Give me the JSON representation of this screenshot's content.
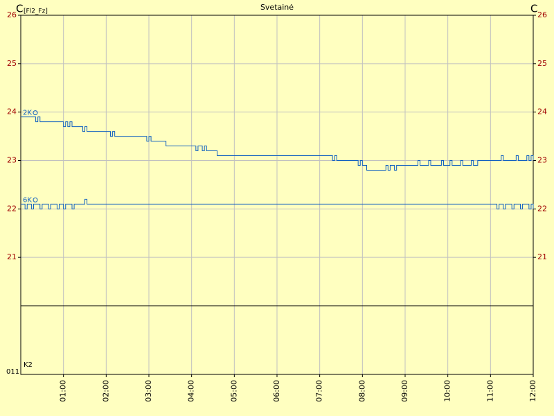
{
  "chart_data": {
    "type": "line",
    "title": "Svetainė",
    "y_axis_label": "C",
    "y_axis_sublabel": "[Fl2_Fz]",
    "y2_axis_label": "C",
    "xlim": [
      0,
      12
    ],
    "xticks": [
      {
        "value": 1,
        "label": "01:00"
      },
      {
        "value": 2,
        "label": "02:00"
      },
      {
        "value": 3,
        "label": "03:00"
      },
      {
        "value": 4,
        "label": "04:00"
      },
      {
        "value": 5,
        "label": "05:00"
      },
      {
        "value": 6,
        "label": "06:00"
      },
      {
        "value": 7,
        "label": "07:00"
      },
      {
        "value": 8,
        "label": "08:00"
      },
      {
        "value": 9,
        "label": "09:00"
      },
      {
        "value": 10,
        "label": "10:00"
      },
      {
        "value": 11,
        "label": "11:00"
      },
      {
        "value": 12,
        "label": "12:00"
      }
    ],
    "ylim": [
      20,
      26
    ],
    "yticks": [
      21,
      22,
      23,
      24,
      25,
      26
    ],
    "grid": true,
    "step": true,
    "series": [
      {
        "name": "2K",
        "color": "#1060c0",
        "x": [
          0,
          0.35,
          0.4,
          0.45,
          1.0,
          1.05,
          1.1,
          1.15,
          1.2,
          1.45,
          1.5,
          1.55,
          2.1,
          2.15,
          2.2,
          2.95,
          3.0,
          3.05,
          3.4,
          4.1,
          4.15,
          4.25,
          4.3,
          4.35,
          4.6,
          7.3,
          7.35,
          7.4,
          7.9,
          7.95,
          8.0,
          8.1,
          8.55,
          8.6,
          8.65,
          8.75,
          8.8,
          9.3,
          9.35,
          9.55,
          9.6,
          9.85,
          9.9,
          10.05,
          10.1,
          10.3,
          10.35,
          10.55,
          10.6,
          10.7,
          11.25,
          11.3,
          11.6,
          11.65,
          11.85,
          11.9,
          11.95,
          12
        ],
        "values": [
          23.9,
          23.8,
          23.9,
          23.8,
          23.7,
          23.8,
          23.7,
          23.8,
          23.7,
          23.6,
          23.7,
          23.6,
          23.5,
          23.6,
          23.5,
          23.4,
          23.5,
          23.4,
          23.3,
          23.2,
          23.3,
          23.2,
          23.3,
          23.2,
          23.1,
          23.0,
          23.1,
          23.0,
          22.9,
          23.0,
          22.9,
          22.8,
          22.9,
          22.8,
          22.9,
          22.8,
          22.9,
          23.0,
          22.9,
          23.0,
          22.9,
          23.0,
          22.9,
          23.0,
          22.9,
          23.0,
          22.9,
          23.0,
          22.9,
          23.0,
          23.1,
          23.0,
          23.1,
          23.0,
          23.1,
          23.0,
          23.1,
          23.0
        ]
      },
      {
        "name": "6K",
        "color": "#1060c0",
        "x": [
          0,
          0.1,
          0.15,
          0.25,
          0.3,
          0.45,
          0.5,
          0.65,
          0.7,
          0.85,
          0.9,
          1.0,
          1.05,
          1.2,
          1.25,
          1.5,
          1.55,
          11.15,
          11.2,
          11.3,
          11.35,
          11.5,
          11.55,
          11.7,
          11.75,
          11.9,
          11.95,
          12
        ],
        "values": [
          22.1,
          22.0,
          22.1,
          22.0,
          22.1,
          22.0,
          22.1,
          22.0,
          22.1,
          22.0,
          22.1,
          22.0,
          22.1,
          22.0,
          22.1,
          22.2,
          22.1,
          22.0,
          22.1,
          22.0,
          22.1,
          22.0,
          22.1,
          22.0,
          22.1,
          22.0,
          22.1,
          22.0
        ]
      }
    ],
    "digital_panel": {
      "label": "K2",
      "axis_label": "011"
    }
  }
}
